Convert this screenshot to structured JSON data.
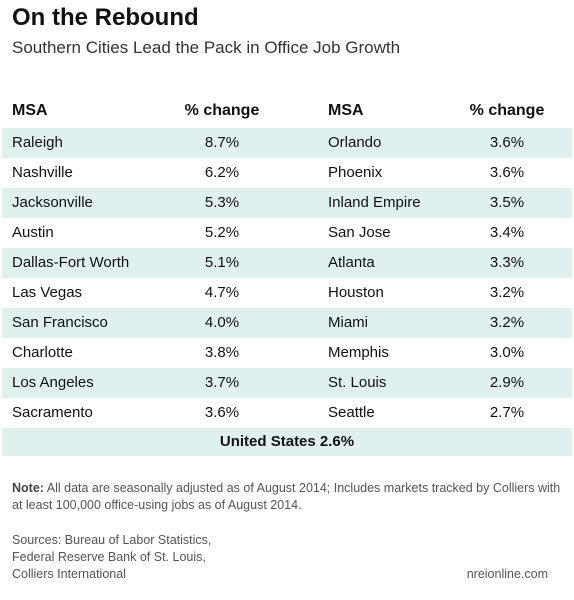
{
  "header": {
    "title": "On the Rebound",
    "subtitle": "Southern Cities Lead the Pack in Office Job Growth"
  },
  "table": {
    "columns": [
      "MSA",
      "% change",
      "MSA",
      "% change"
    ],
    "rows": [
      [
        "Raleigh",
        "8.7%",
        "Orlando",
        "3.6%"
      ],
      [
        "Nashville",
        "6.2%",
        "Phoenix",
        "3.6%"
      ],
      [
        "Jacksonville",
        "5.3%",
        "Inland Empire",
        "3.5%"
      ],
      [
        "Austin",
        "5.2%",
        "San Jose",
        "3.4%"
      ],
      [
        "Dallas-Fort Worth",
        "5.1%",
        "Atlanta",
        "3.3%"
      ],
      [
        "Las Vegas",
        "4.7%",
        "Houston",
        "3.2%"
      ],
      [
        "San Francisco",
        "4.0%",
        "Miami",
        "3.2%"
      ],
      [
        "Charlotte",
        "3.8%",
        "Memphis",
        "3.0%"
      ],
      [
        "Los Angeles",
        "3.7%",
        "St. Louis",
        "2.9%"
      ],
      [
        "Sacramento",
        "3.6%",
        "Seattle",
        "2.7%"
      ]
    ],
    "footer": "United States 2.6%"
  },
  "note": {
    "label": "Note:",
    "text": "All data are seasonally adjusted as of August 2014; Includes markets tracked by Colliers with at least 100,000 office-using jobs as of August 2014."
  },
  "sources": [
    "Sources: Bureau of Labor Statistics,",
    "Federal Reserve Bank of St. Louis,",
    "Colliers International"
  ],
  "credit": "nreionline.com"
}
